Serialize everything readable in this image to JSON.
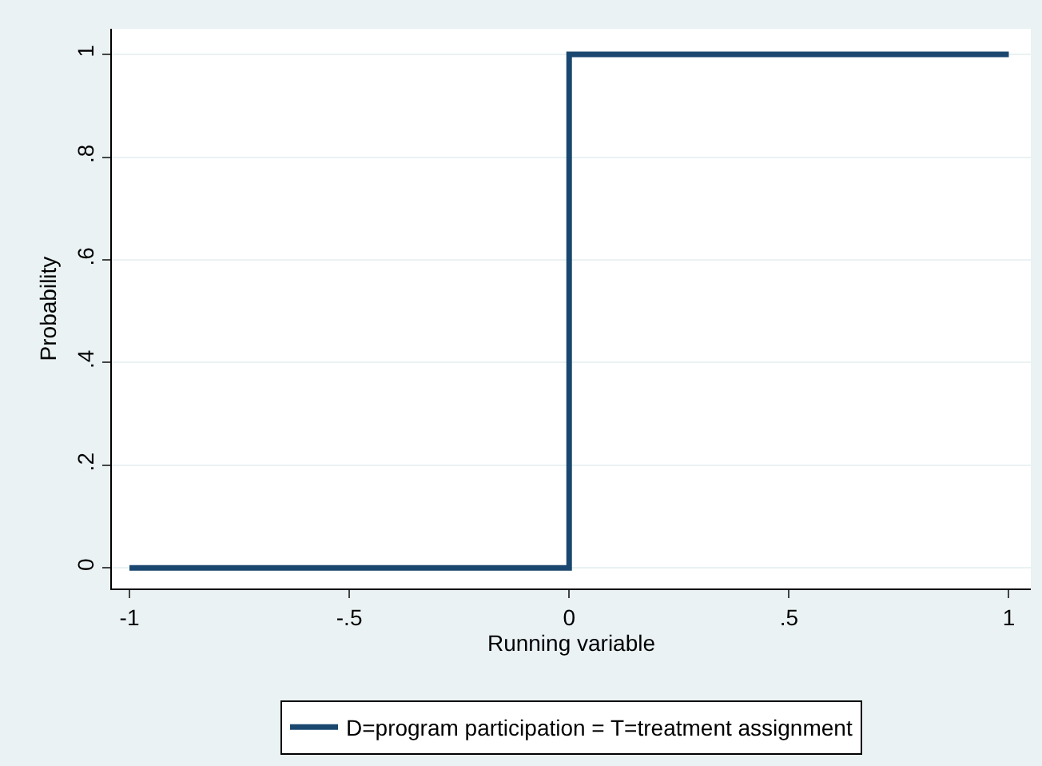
{
  "chart_data": {
    "type": "step",
    "xlabel": "Running variable",
    "ylabel": "Probability",
    "x": [
      -1,
      0,
      1
    ],
    "series": [
      {
        "name": "D=program participation = T=treatment assignment",
        "color": "#1a476f",
        "values": [
          0,
          1,
          1
        ]
      }
    ],
    "xlim": [
      -1.04,
      1.05
    ],
    "xticks": [
      -1,
      {
        "value": -0.5,
        "label": "-.5"
      },
      0,
      {
        "value": 0.5,
        "label": ".5"
      },
      1
    ],
    "ylim": [
      -0.04,
      1.05
    ],
    "yticks": [
      0,
      {
        "value": 0.2,
        "label": ".2"
      },
      {
        "value": 0.4,
        "label": ".4"
      },
      {
        "value": 0.6,
        "label": ".6"
      },
      {
        "value": 0.8,
        "label": ".8"
      },
      1
    ],
    "grid": "y",
    "legend": "bottom",
    "marker": "none",
    "line_style": "solid"
  }
}
